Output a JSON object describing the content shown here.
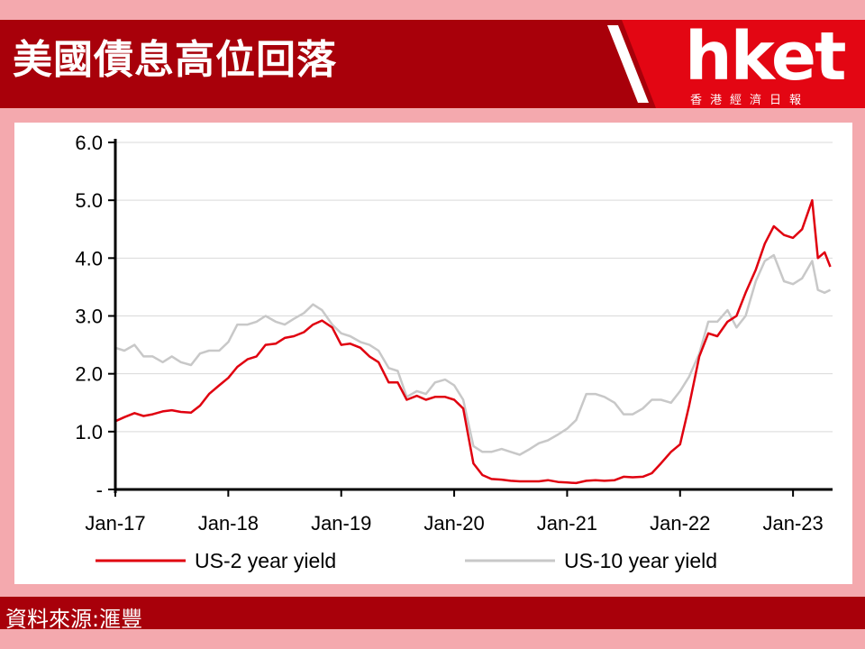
{
  "header": {
    "title": "美國債息高位回落",
    "logo_text": "hket",
    "logo_subtitle": "香港經濟日報"
  },
  "footer": {
    "source": "資料來源:滙豐"
  },
  "colors": {
    "banner": "#a8000a",
    "background": "#f4a9ae",
    "us2": "#e0000f",
    "us10": "#c8c8c8"
  },
  "chart_data": {
    "type": "line",
    "x_tick_labels": [
      "Jan-17",
      "Jan-18",
      "Jan-19",
      "Jan-20",
      "Jan-21",
      "Jan-22",
      "Jan-23"
    ],
    "y_tick_labels": [
      "-",
      "1.0",
      "2.0",
      "3.0",
      "4.0",
      "5.0",
      "6.0"
    ],
    "ylim": [
      0,
      6
    ],
    "xlim": [
      2017.0,
      2023.35
    ],
    "grid": "horizontal",
    "legend_position": "bottom",
    "series": [
      {
        "name": "US-2 year yield",
        "color": "#e0000f",
        "points": [
          [
            2017.0,
            1.18
          ],
          [
            2017.08,
            1.25
          ],
          [
            2017.17,
            1.32
          ],
          [
            2017.25,
            1.27
          ],
          [
            2017.33,
            1.3
          ],
          [
            2017.42,
            1.35
          ],
          [
            2017.5,
            1.37
          ],
          [
            2017.58,
            1.34
          ],
          [
            2017.67,
            1.33
          ],
          [
            2017.75,
            1.45
          ],
          [
            2017.83,
            1.65
          ],
          [
            2017.92,
            1.8
          ],
          [
            2018.0,
            1.93
          ],
          [
            2018.08,
            2.12
          ],
          [
            2018.17,
            2.25
          ],
          [
            2018.25,
            2.3
          ],
          [
            2018.33,
            2.5
          ],
          [
            2018.42,
            2.52
          ],
          [
            2018.5,
            2.62
          ],
          [
            2018.58,
            2.65
          ],
          [
            2018.67,
            2.72
          ],
          [
            2018.75,
            2.85
          ],
          [
            2018.83,
            2.92
          ],
          [
            2018.92,
            2.8
          ],
          [
            2019.0,
            2.5
          ],
          [
            2019.08,
            2.52
          ],
          [
            2019.17,
            2.45
          ],
          [
            2019.25,
            2.3
          ],
          [
            2019.33,
            2.2
          ],
          [
            2019.42,
            1.85
          ],
          [
            2019.5,
            1.85
          ],
          [
            2019.58,
            1.55
          ],
          [
            2019.67,
            1.62
          ],
          [
            2019.75,
            1.55
          ],
          [
            2019.83,
            1.6
          ],
          [
            2019.92,
            1.6
          ],
          [
            2020.0,
            1.55
          ],
          [
            2020.08,
            1.4
          ],
          [
            2020.17,
            0.45
          ],
          [
            2020.25,
            0.25
          ],
          [
            2020.33,
            0.18
          ],
          [
            2020.42,
            0.17
          ],
          [
            2020.5,
            0.15
          ],
          [
            2020.58,
            0.14
          ],
          [
            2020.67,
            0.14
          ],
          [
            2020.75,
            0.14
          ],
          [
            2020.83,
            0.16
          ],
          [
            2020.92,
            0.13
          ],
          [
            2021.0,
            0.12
          ],
          [
            2021.08,
            0.11
          ],
          [
            2021.17,
            0.15
          ],
          [
            2021.25,
            0.16
          ],
          [
            2021.33,
            0.15
          ],
          [
            2021.42,
            0.16
          ],
          [
            2021.5,
            0.22
          ],
          [
            2021.58,
            0.21
          ],
          [
            2021.67,
            0.22
          ],
          [
            2021.75,
            0.28
          ],
          [
            2021.83,
            0.45
          ],
          [
            2021.92,
            0.65
          ],
          [
            2022.0,
            0.78
          ],
          [
            2022.08,
            1.45
          ],
          [
            2022.17,
            2.3
          ],
          [
            2022.25,
            2.7
          ],
          [
            2022.33,
            2.65
          ],
          [
            2022.42,
            2.9
          ],
          [
            2022.5,
            3.0
          ],
          [
            2022.58,
            3.4
          ],
          [
            2022.67,
            3.8
          ],
          [
            2022.75,
            4.25
          ],
          [
            2022.83,
            4.55
          ],
          [
            2022.92,
            4.4
          ],
          [
            2023.0,
            4.35
          ],
          [
            2023.08,
            4.5
          ],
          [
            2023.17,
            5.0
          ],
          [
            2023.22,
            4.0
          ],
          [
            2023.28,
            4.1
          ],
          [
            2023.33,
            3.85
          ]
        ]
      },
      {
        "name": "US-10 year yield",
        "color": "#c8c8c8",
        "points": [
          [
            2017.0,
            2.45
          ],
          [
            2017.08,
            2.4
          ],
          [
            2017.17,
            2.5
          ],
          [
            2017.25,
            2.3
          ],
          [
            2017.33,
            2.3
          ],
          [
            2017.42,
            2.2
          ],
          [
            2017.5,
            2.3
          ],
          [
            2017.58,
            2.2
          ],
          [
            2017.67,
            2.15
          ],
          [
            2017.75,
            2.35
          ],
          [
            2017.83,
            2.4
          ],
          [
            2017.92,
            2.4
          ],
          [
            2018.0,
            2.55
          ],
          [
            2018.08,
            2.85
          ],
          [
            2018.17,
            2.85
          ],
          [
            2018.25,
            2.9
          ],
          [
            2018.33,
            3.0
          ],
          [
            2018.42,
            2.9
          ],
          [
            2018.5,
            2.85
          ],
          [
            2018.58,
            2.95
          ],
          [
            2018.67,
            3.05
          ],
          [
            2018.75,
            3.2
          ],
          [
            2018.83,
            3.1
          ],
          [
            2018.92,
            2.85
          ],
          [
            2019.0,
            2.7
          ],
          [
            2019.08,
            2.65
          ],
          [
            2019.17,
            2.55
          ],
          [
            2019.25,
            2.5
          ],
          [
            2019.33,
            2.4
          ],
          [
            2019.42,
            2.1
          ],
          [
            2019.5,
            2.05
          ],
          [
            2019.58,
            1.6
          ],
          [
            2019.67,
            1.7
          ],
          [
            2019.75,
            1.65
          ],
          [
            2019.83,
            1.85
          ],
          [
            2019.92,
            1.9
          ],
          [
            2020.0,
            1.8
          ],
          [
            2020.08,
            1.55
          ],
          [
            2020.17,
            0.75
          ],
          [
            2020.25,
            0.65
          ],
          [
            2020.33,
            0.65
          ],
          [
            2020.42,
            0.7
          ],
          [
            2020.5,
            0.65
          ],
          [
            2020.58,
            0.6
          ],
          [
            2020.67,
            0.7
          ],
          [
            2020.75,
            0.8
          ],
          [
            2020.83,
            0.85
          ],
          [
            2020.92,
            0.95
          ],
          [
            2021.0,
            1.05
          ],
          [
            2021.08,
            1.2
          ],
          [
            2021.17,
            1.65
          ],
          [
            2021.25,
            1.65
          ],
          [
            2021.33,
            1.6
          ],
          [
            2021.42,
            1.5
          ],
          [
            2021.5,
            1.3
          ],
          [
            2021.58,
            1.3
          ],
          [
            2021.67,
            1.4
          ],
          [
            2021.75,
            1.55
          ],
          [
            2021.83,
            1.55
          ],
          [
            2021.92,
            1.5
          ],
          [
            2022.0,
            1.7
          ],
          [
            2022.08,
            1.95
          ],
          [
            2022.17,
            2.35
          ],
          [
            2022.25,
            2.9
          ],
          [
            2022.33,
            2.9
          ],
          [
            2022.42,
            3.1
          ],
          [
            2022.5,
            2.8
          ],
          [
            2022.58,
            3.0
          ],
          [
            2022.67,
            3.6
          ],
          [
            2022.75,
            3.95
          ],
          [
            2022.83,
            4.05
          ],
          [
            2022.92,
            3.6
          ],
          [
            2023.0,
            3.55
          ],
          [
            2023.08,
            3.65
          ],
          [
            2023.17,
            3.95
          ],
          [
            2023.22,
            3.45
          ],
          [
            2023.28,
            3.4
          ],
          [
            2023.33,
            3.45
          ]
        ]
      }
    ]
  }
}
